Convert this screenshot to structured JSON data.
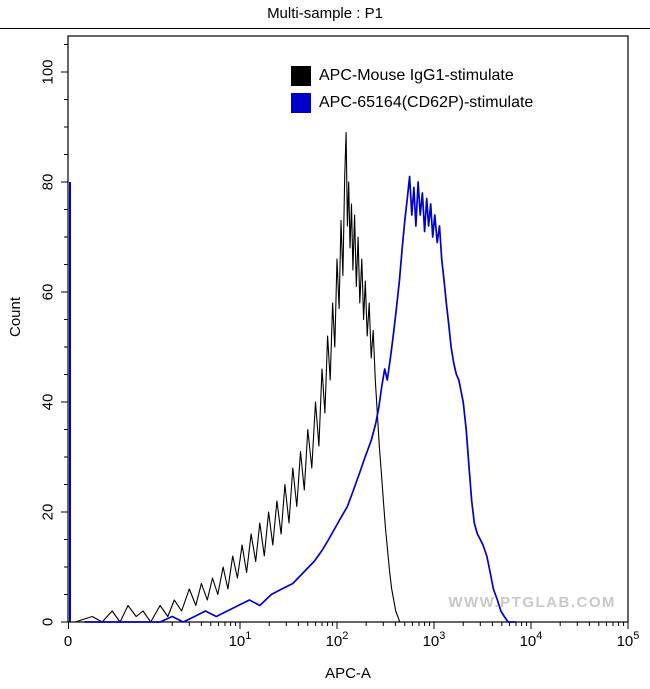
{
  "title": "Multi-sample : P1",
  "watermark": "WWW.PTGLAB.COM",
  "chart_data": {
    "type": "line",
    "subtype": "flow-cytometry-histogram-overlay",
    "title": "Multi-sample : P1",
    "xlabel": "APC-A",
    "ylabel": "Count",
    "x_scale": "log",
    "grid": false,
    "legend_position": "top-center-inside",
    "ylim": [
      0,
      106
    ],
    "y_ticks": [
      0,
      20,
      40,
      60,
      80,
      100
    ],
    "x_ticks": [
      {
        "label": "0",
        "value": null
      },
      {
        "label": "10^1",
        "value": 10
      },
      {
        "label": "10^2",
        "value": 100
      },
      {
        "label": "10^3",
        "value": 1000
      },
      {
        "label": "10^4",
        "value": 10000
      },
      {
        "label": "10^5",
        "value": 100000
      }
    ],
    "series": [
      {
        "name": "APC-Mouse IgG1-stimulate",
        "color": "#000000",
        "peak_x": 124,
        "peak_count": 89,
        "points": [
          [
            0.2,
            0
          ],
          [
            0.3,
            1
          ],
          [
            0.38,
            0
          ],
          [
            0.48,
            2
          ],
          [
            0.58,
            0
          ],
          [
            0.7,
            3
          ],
          [
            0.85,
            1
          ],
          [
            1.0,
            2
          ],
          [
            1.2,
            0
          ],
          [
            1.5,
            3
          ],
          [
            1.8,
            1
          ],
          [
            2.1,
            4
          ],
          [
            2.5,
            2
          ],
          [
            3.0,
            6
          ],
          [
            3.5,
            3
          ],
          [
            4.0,
            7
          ],
          [
            4.6,
            4
          ],
          [
            5.2,
            8
          ],
          [
            5.9,
            5
          ],
          [
            6.7,
            10
          ],
          [
            7.5,
            6
          ],
          [
            8.4,
            12
          ],
          [
            9.4,
            8
          ],
          [
            10.5,
            14
          ],
          [
            11.7,
            9
          ],
          [
            13,
            16
          ],
          [
            14.5,
            11
          ],
          [
            16,
            18
          ],
          [
            17.8,
            12
          ],
          [
            19.7,
            20
          ],
          [
            21.8,
            14
          ],
          [
            24,
            22
          ],
          [
            26.5,
            16
          ],
          [
            29,
            25
          ],
          [
            32,
            18
          ],
          [
            35,
            28
          ],
          [
            38.5,
            21
          ],
          [
            42,
            31
          ],
          [
            46,
            24
          ],
          [
            50,
            35
          ],
          [
            55,
            28
          ],
          [
            60,
            40
          ],
          [
            65,
            32
          ],
          [
            70,
            46
          ],
          [
            75,
            38
          ],
          [
            80,
            52
          ],
          [
            85,
            44
          ],
          [
            90,
            58
          ],
          [
            95,
            50
          ],
          [
            100,
            66
          ],
          [
            105,
            57
          ],
          [
            110,
            73
          ],
          [
            115,
            63
          ],
          [
            120,
            81
          ],
          [
            124,
            89
          ],
          [
            128,
            72
          ],
          [
            132,
            80
          ],
          [
            136,
            68
          ],
          [
            141,
            76
          ],
          [
            146,
            64
          ],
          [
            152,
            74
          ],
          [
            158,
            61
          ],
          [
            165,
            70
          ],
          [
            172,
            58
          ],
          [
            180,
            66
          ],
          [
            188,
            55
          ],
          [
            196,
            62
          ],
          [
            205,
            52
          ],
          [
            215,
            58
          ],
          [
            225,
            48
          ],
          [
            236,
            53
          ],
          [
            248,
            44
          ],
          [
            260,
            38
          ],
          [
            273,
            32
          ],
          [
            287,
            27
          ],
          [
            301,
            22
          ],
          [
            316,
            17
          ],
          [
            332,
            13
          ],
          [
            349,
            9
          ],
          [
            366,
            6
          ],
          [
            384,
            4
          ],
          [
            403,
            2
          ],
          [
            423,
            1
          ],
          [
            444,
            0
          ]
        ]
      },
      {
        "name": "APC-65164(CD62P)-stimulate",
        "color": "#0000cc",
        "peak_x": 560,
        "peak_count": 81,
        "zero_spike_count": 80,
        "points": [
          [
            0.25,
            0
          ],
          [
            1.5,
            0
          ],
          [
            2,
            1
          ],
          [
            2.6,
            0
          ],
          [
            3.4,
            1
          ],
          [
            4.4,
            2
          ],
          [
            5.7,
            1
          ],
          [
            7.4,
            2
          ],
          [
            9.6,
            3
          ],
          [
            12.5,
            4
          ],
          [
            16,
            3
          ],
          [
            21,
            5
          ],
          [
            27,
            6
          ],
          [
            35,
            7
          ],
          [
            45,
            9
          ],
          [
            58,
            11
          ],
          [
            70,
            13
          ],
          [
            82,
            15
          ],
          [
            95,
            17
          ],
          [
            110,
            19
          ],
          [
            128,
            21
          ],
          [
            148,
            24
          ],
          [
            170,
            27
          ],
          [
            195,
            30
          ],
          [
            225,
            33
          ],
          [
            250,
            36
          ],
          [
            270,
            39
          ],
          [
            290,
            43
          ],
          [
            310,
            46
          ],
          [
            330,
            44
          ],
          [
            355,
            48
          ],
          [
            380,
            52
          ],
          [
            410,
            57
          ],
          [
            440,
            62
          ],
          [
            470,
            68
          ],
          [
            500,
            73
          ],
          [
            530,
            77
          ],
          [
            560,
            81
          ],
          [
            590,
            74
          ],
          [
            620,
            79
          ],
          [
            650,
            72
          ],
          [
            685,
            80
          ],
          [
            720,
            74
          ],
          [
            760,
            78
          ],
          [
            800,
            71
          ],
          [
            840,
            77
          ],
          [
            880,
            72
          ],
          [
            925,
            76
          ],
          [
            970,
            70
          ],
          [
            1020,
            74
          ],
          [
            1080,
            69
          ],
          [
            1140,
            72
          ],
          [
            1200,
            66
          ],
          [
            1270,
            62
          ],
          [
            1340,
            58
          ],
          [
            1420,
            54
          ],
          [
            1500,
            50
          ],
          [
            1600,
            47
          ],
          [
            1700,
            45
          ],
          [
            1800,
            44
          ],
          [
            1900,
            42
          ],
          [
            2000,
            40
          ],
          [
            2150,
            35
          ],
          [
            2300,
            28
          ],
          [
            2450,
            22
          ],
          [
            2600,
            18
          ],
          [
            2800,
            16
          ],
          [
            3000,
            15
          ],
          [
            3200,
            14
          ],
          [
            3500,
            12
          ],
          [
            3800,
            9
          ],
          [
            4100,
            6
          ],
          [
            4500,
            4
          ],
          [
            4900,
            2
          ],
          [
            5300,
            1
          ],
          [
            5800,
            0
          ],
          [
            7000,
            0
          ]
        ]
      }
    ]
  }
}
